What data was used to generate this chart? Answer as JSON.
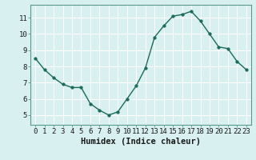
{
  "x": [
    0,
    1,
    2,
    3,
    4,
    5,
    6,
    7,
    8,
    9,
    10,
    11,
    12,
    13,
    14,
    15,
    16,
    17,
    18,
    19,
    20,
    21,
    22,
    23
  ],
  "y": [
    8.5,
    7.8,
    7.3,
    6.9,
    6.7,
    6.7,
    5.7,
    5.3,
    5.0,
    5.2,
    6.0,
    6.8,
    7.9,
    9.8,
    10.5,
    11.1,
    11.2,
    11.4,
    10.8,
    10.0,
    9.2,
    9.1,
    8.3,
    7.8
  ],
  "line_color": "#1a6b5a",
  "marker_color": "#1a6b5a",
  "bg_color": "#d8f0f0",
  "grid_color": "#c0e0e0",
  "xlabel": "Humidex (Indice chaleur)",
  "xlabel_fontsize": 7.5,
  "xtick_labels": [
    "0",
    "1",
    "2",
    "3",
    "4",
    "5",
    "6",
    "7",
    "8",
    "9",
    "10",
    "11",
    "12",
    "13",
    "14",
    "15",
    "16",
    "17",
    "18",
    "19",
    "20",
    "21",
    "22",
    "23"
  ],
  "ytick_labels": [
    "5",
    "6",
    "7",
    "8",
    "9",
    "10",
    "11"
  ],
  "ytick_vals": [
    5,
    6,
    7,
    8,
    9,
    10,
    11
  ],
  "ylim": [
    4.4,
    11.8
  ],
  "xlim": [
    -0.5,
    23.5
  ],
  "tick_fontsize": 6.5
}
